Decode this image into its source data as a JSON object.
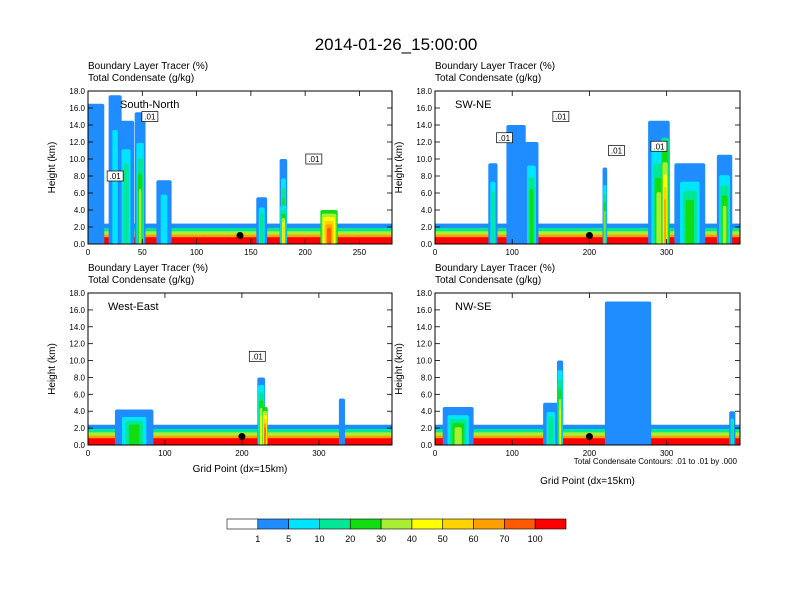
{
  "title": "2014-01-26_15:00:00",
  "colors": {
    "levels": [
      "#ffffff",
      "#1f8cff",
      "#00e5ff",
      "#00e896",
      "#11dd11",
      "#aaee33",
      "#ffff00",
      "#ffd400",
      "#ffa000",
      "#ff5a00",
      "#ff0000"
    ],
    "contour": "#000000"
  },
  "chart_data": [
    {
      "type": "heatmap",
      "panel_label": "South-North",
      "header_line1": "Boundary Layer Tracer   (%)",
      "header_line2": "Total Condensate   (g/kg)",
      "ylabel": "Height (km)",
      "xlabel": "",
      "xlim": [
        0,
        280
      ],
      "ylim": [
        0,
        18
      ],
      "xticks": [
        0,
        50,
        100,
        150,
        200,
        250
      ],
      "yticks": [
        "0.0",
        "2.0",
        "4.0",
        "6.0",
        "8.0",
        "10.0",
        "12.0",
        "14.0",
        "16.0",
        "18.0"
      ],
      "contour_labels": [
        {
          "text": ".01",
          "x": 57,
          "y": 15.0
        },
        {
          "text": ".01",
          "x": 25,
          "y": 8.0
        },
        {
          "text": ".01",
          "x": 208,
          "y": 10.0
        }
      ],
      "marker": {
        "x": 140,
        "y": 1.0
      },
      "tracer_features": [
        {
          "x": 5,
          "width": 20,
          "top": 16.5,
          "level": 1
        },
        {
          "x": 25,
          "width": 12,
          "top": 17.5,
          "level": 2
        },
        {
          "x": 35,
          "width": 15,
          "top": 14.5,
          "level": 3
        },
        {
          "x": 48,
          "width": 10,
          "top": 15.5,
          "level": 5
        },
        {
          "x": 70,
          "width": 14,
          "top": 7.5,
          "level": 2
        },
        {
          "x": 160,
          "width": 10,
          "top": 5.5,
          "level": 3
        },
        {
          "x": 180,
          "width": 7,
          "top": 10.0,
          "level": 4
        },
        {
          "x": 180,
          "width": 6,
          "top": 4.5,
          "level": 7
        },
        {
          "x": 222,
          "width": 16,
          "top": 4.0,
          "level": 9
        }
      ]
    },
    {
      "type": "heatmap",
      "panel_label": "SW-NE",
      "header_line1": "Boundary Layer Tracer   (%)",
      "header_line2": "Total Condensate   (g/kg)",
      "ylabel": "Height (km)",
      "xlabel": "",
      "xlim": [
        0,
        395
      ],
      "ylim": [
        0,
        18
      ],
      "xticks": [
        0,
        100,
        200,
        300
      ],
      "yticks": [
        "0.0",
        "2.0",
        "4.0",
        "6.0",
        "8.0",
        "10.0",
        "12.0",
        "14.0",
        "16.0",
        "18.0"
      ],
      "contour_labels": [
        {
          "text": ".01",
          "x": 163,
          "y": 15.0
        },
        {
          "text": ".01",
          "x": 90,
          "y": 12.5
        },
        {
          "text": ".01",
          "x": 235,
          "y": 11.0
        },
        {
          "text": ".01",
          "x": 290,
          "y": 11.5
        }
      ],
      "marker": {
        "x": 200,
        "y": 1.0
      },
      "tracer_features": [
        {
          "x": 75,
          "width": 12,
          "top": 9.5,
          "level": 3
        },
        {
          "x": 105,
          "width": 25,
          "top": 14.0,
          "level": 1
        },
        {
          "x": 125,
          "width": 18,
          "top": 12.0,
          "level": 4
        },
        {
          "x": 220,
          "width": 6,
          "top": 9.0,
          "level": 5
        },
        {
          "x": 290,
          "width": 28,
          "top": 14.5,
          "level": 5
        },
        {
          "x": 298,
          "width": 10,
          "top": 12.5,
          "level": 8
        },
        {
          "x": 330,
          "width": 40,
          "top": 9.5,
          "level": 4
        },
        {
          "x": 375,
          "width": 20,
          "top": 10.5,
          "level": 5
        }
      ]
    },
    {
      "type": "heatmap",
      "panel_label": "West-East",
      "header_line1": "Boundary Layer Tracer   (%)",
      "header_line2": "Total Condensate   (g/kg)",
      "ylabel": "Height (km)",
      "xlabel": "Grid Point (dx=15km)",
      "xlim": [
        0,
        395
      ],
      "ylim": [
        0,
        18
      ],
      "xticks": [
        0,
        100,
        200,
        300
      ],
      "yticks": [
        "0.0",
        "2.0",
        "4.0",
        "6.0",
        "8.0",
        "10.0",
        "12.0",
        "14.0",
        "16.0",
        "18.0"
      ],
      "contour_labels": [
        {
          "text": ".01",
          "x": 220,
          "y": 10.5
        }
      ],
      "marker": {
        "x": 200,
        "y": 1.0
      },
      "tracer_features": [
        {
          "x": 60,
          "width": 50,
          "top": 4.2,
          "level": 4
        },
        {
          "x": 225,
          "width": 10,
          "top": 8.0,
          "level": 6
        },
        {
          "x": 230,
          "width": 7,
          "top": 4.5,
          "level": 9
        },
        {
          "x": 330,
          "width": 8,
          "top": 5.5,
          "level": 1
        }
      ]
    },
    {
      "type": "heatmap",
      "panel_label": "NW-SE",
      "header_line1": "Boundary Layer Tracer   (%)",
      "header_line2": "Total Condensate   (g/kg)",
      "ylabel": "Height (km)",
      "xlabel": "Grid Point (dx=15km)",
      "xlim": [
        0,
        395
      ],
      "ylim": [
        0,
        18
      ],
      "xticks": [
        0,
        100,
        200,
        300
      ],
      "yticks": [
        "0.0",
        "2.0",
        "4.0",
        "6.0",
        "8.0",
        "10.0",
        "12.0",
        "14.0",
        "16.0",
        "18.0"
      ],
      "contour_labels": [],
      "marker": {
        "x": 200,
        "y": 1.0
      },
      "tracer_features": [
        {
          "x": 30,
          "width": 40,
          "top": 4.5,
          "level": 5
        },
        {
          "x": 150,
          "width": 20,
          "top": 5.0,
          "level": 3
        },
        {
          "x": 162,
          "width": 8,
          "top": 10.0,
          "level": 6
        },
        {
          "x": 250,
          "width": 60,
          "top": 17.0,
          "level": 1
        },
        {
          "x": 385,
          "width": 8,
          "top": 4.0,
          "level": 3
        }
      ]
    }
  ],
  "contour_note": "Total Condensate Contours: .01 to .01 by .000",
  "colorbar": {
    "labels": [
      "1",
      "5",
      "10",
      "20",
      "30",
      "40",
      "50",
      "60",
      "70",
      "100"
    ]
  }
}
